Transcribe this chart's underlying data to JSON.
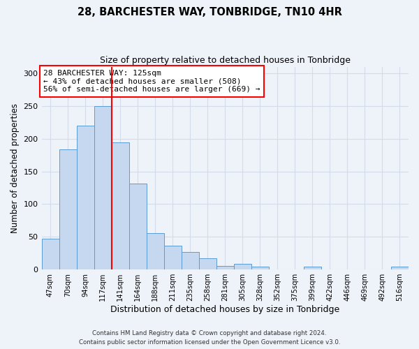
{
  "title": "28, BARCHESTER WAY, TONBRIDGE, TN10 4HR",
  "subtitle": "Size of property relative to detached houses in Tonbridge",
  "xlabel": "Distribution of detached houses by size in Tonbridge",
  "ylabel": "Number of detached properties",
  "bar_labels": [
    "47sqm",
    "70sqm",
    "94sqm",
    "117sqm",
    "141sqm",
    "164sqm",
    "188sqm",
    "211sqm",
    "235sqm",
    "258sqm",
    "281sqm",
    "305sqm",
    "328sqm",
    "352sqm",
    "375sqm",
    "399sqm",
    "422sqm",
    "446sqm",
    "469sqm",
    "492sqm",
    "516sqm"
  ],
  "bar_values": [
    47,
    184,
    220,
    250,
    194,
    131,
    56,
    37,
    27,
    17,
    6,
    9,
    4,
    0,
    0,
    4,
    0,
    0,
    0,
    0,
    4
  ],
  "bar_color": "#c5d8f0",
  "bar_edge_color": "#5b9bd5",
  "grid_color": "#d4dcea",
  "background_color": "#eef2f9",
  "vline_color": "red",
  "vline_position": 3.5,
  "annotation_title": "28 BARCHESTER WAY: 125sqm",
  "annotation_line1": "← 43% of detached houses are smaller (508)",
  "annotation_line2": "56% of semi-detached houses are larger (669) →",
  "annotation_box_color": "white",
  "annotation_box_edge": "red",
  "ylim": [
    0,
    310
  ],
  "yticks": [
    0,
    50,
    100,
    150,
    200,
    250,
    300
  ],
  "footer1": "Contains HM Land Registry data © Crown copyright and database right 2024.",
  "footer2": "Contains public sector information licensed under the Open Government Licence v3.0."
}
